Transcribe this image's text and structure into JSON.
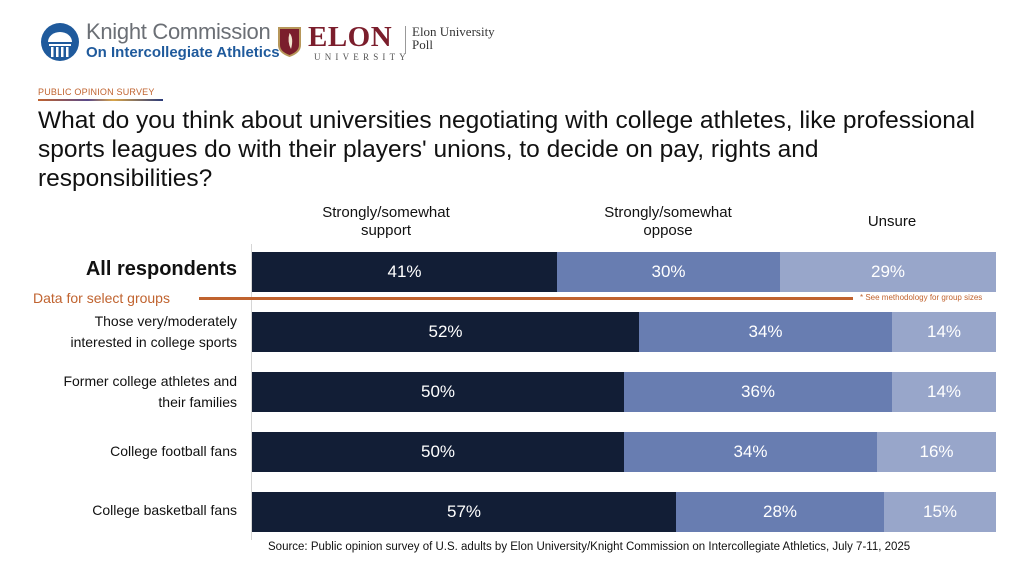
{
  "header": {
    "knight_title": "Knight Commission",
    "knight_subtitle": "On Intercollegiate Athletics",
    "elon_wordmark": "ELON",
    "elon_university": "UNIVERSITY",
    "elon_poll_line1": "Elon University",
    "elon_poll_line2": "Poll",
    "survey_tag": "PUBLIC OPINION SURVEY"
  },
  "colors": {
    "support": "#121e36",
    "oppose": "#687db1",
    "unsure": "#98a6ca",
    "accent": "#c0632f"
  },
  "chart_data": {
    "type": "bar",
    "orientation": "horizontal",
    "stacked": true,
    "title": "What do you think about universities negotiating with college athletes, like professional sports leagues do with their players' unions, to decide on pay, rights and responsibilities?",
    "xlim": [
      0,
      100
    ],
    "categories": [
      "All respondents",
      "Those very/moderately interested in college sports",
      "Former college athletes and their families",
      "College football fans",
      "College basketball fans"
    ],
    "category_lines": [
      [
        "All respondents"
      ],
      [
        "Those very/moderately",
        "interested in college sports"
      ],
      [
        "Former college athletes and",
        "their families"
      ],
      [
        "College football fans"
      ],
      [
        "College basketball fans"
      ]
    ],
    "series": [
      {
        "name": "Strongly/somewhat support",
        "name_lines": [
          "Strongly/somewhat",
          "support"
        ],
        "values": [
          41,
          52,
          50,
          50,
          57
        ],
        "labels": [
          "41%",
          "52%",
          "50%",
          "50%",
          "57%"
        ]
      },
      {
        "name": "Strongly/somewhat oppose",
        "name_lines": [
          "Strongly/somewhat",
          "oppose"
        ],
        "values": [
          30,
          34,
          36,
          34,
          28
        ],
        "labels": [
          "30%",
          "34%",
          "36%",
          "34%",
          "28%"
        ]
      },
      {
        "name": "Unsure",
        "name_lines": [
          "Unsure"
        ],
        "values": [
          29,
          14,
          14,
          16,
          15
        ],
        "labels": [
          "29%",
          "14%",
          "14%",
          "16%",
          "15%"
        ]
      }
    ],
    "legend_position": "top",
    "group_divider_label": "Data for select groups",
    "group_note": "* See methodology for group sizes",
    "source": "Source: Public opinion survey of U.S. adults by Elon University/Knight Commission on Intercollegiate Athletics, July 7-11, 2025"
  }
}
